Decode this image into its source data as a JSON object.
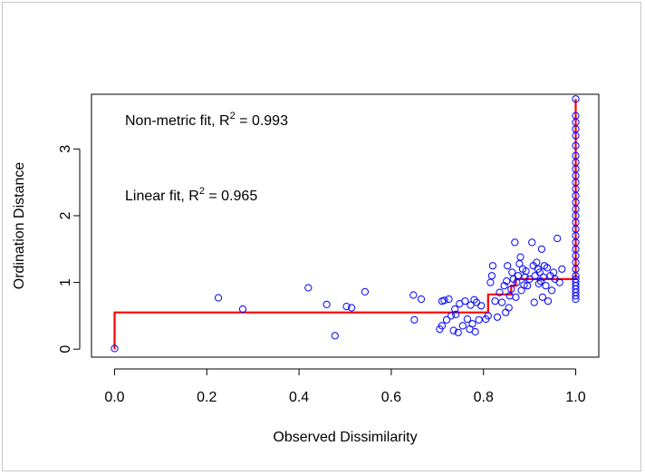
{
  "chart_data": {
    "type": "scatter",
    "title": "",
    "xlabel": "Observed Dissimilarity",
    "ylabel": "Ordination Distance",
    "xlim": [
      -0.05,
      1.05
    ],
    "ylim": [
      -0.12,
      3.82
    ],
    "x_ticks": [
      0.0,
      0.2,
      0.4,
      0.6,
      0.8,
      1.0
    ],
    "x_tick_labels": [
      "0.0",
      "0.2",
      "0.4",
      "0.6",
      "0.8",
      "1.0"
    ],
    "y_ticks": [
      0,
      1,
      2,
      3
    ],
    "y_tick_labels": [
      "0",
      "1",
      "2",
      "3"
    ],
    "grid": false,
    "legend": "none",
    "annotations": [
      {
        "prefix": "Non-metric fit, R",
        "sup": "2",
        "suffix": " = 0.993"
      },
      {
        "prefix": "Linear fit, R",
        "sup": "2",
        "suffix": " = 0.965"
      }
    ],
    "point_color": "#0000ff",
    "line_color": "#ff0000",
    "points": [
      [
        0.0,
        0.01
      ],
      [
        0.225,
        0.77
      ],
      [
        0.278,
        0.6
      ],
      [
        0.42,
        0.92
      ],
      [
        0.46,
        0.67
      ],
      [
        0.478,
        0.2
      ],
      [
        0.503,
        0.64
      ],
      [
        0.514,
        0.62
      ],
      [
        0.543,
        0.86
      ],
      [
        0.648,
        0.81
      ],
      [
        0.65,
        0.44
      ],
      [
        0.665,
        0.75
      ],
      [
        0.705,
        0.3
      ],
      [
        0.71,
        0.35
      ],
      [
        0.71,
        0.72
      ],
      [
        0.715,
        0.73
      ],
      [
        0.72,
        0.44
      ],
      [
        0.725,
        0.75
      ],
      [
        0.73,
        0.5
      ],
      [
        0.735,
        0.28
      ],
      [
        0.738,
        0.6
      ],
      [
        0.74,
        0.52
      ],
      [
        0.745,
        0.25
      ],
      [
        0.748,
        0.68
      ],
      [
        0.755,
        0.35
      ],
      [
        0.76,
        0.72
      ],
      [
        0.765,
        0.45
      ],
      [
        0.77,
        0.3
      ],
      [
        0.772,
        0.66
      ],
      [
        0.776,
        0.38
      ],
      [
        0.78,
        0.74
      ],
      [
        0.782,
        0.26
      ],
      [
        0.785,
        0.7
      ],
      [
        0.79,
        0.44
      ],
      [
        0.795,
        0.65
      ],
      [
        0.805,
        0.45
      ],
      [
        0.81,
        0.5
      ],
      [
        0.815,
        1.0
      ],
      [
        0.818,
        1.1
      ],
      [
        0.82,
        1.25
      ],
      [
        0.825,
        0.72
      ],
      [
        0.83,
        0.48
      ],
      [
        0.835,
        0.85
      ],
      [
        0.84,
        0.7
      ],
      [
        0.845,
        0.95
      ],
      [
        0.848,
        0.55
      ],
      [
        0.85,
        1.02
      ],
      [
        0.852,
        1.25
      ],
      [
        0.855,
        0.62
      ],
      [
        0.857,
        0.8
      ],
      [
        0.86,
        0.9
      ],
      [
        0.862,
        1.15
      ],
      [
        0.865,
        1.05
      ],
      [
        0.868,
        1.6
      ],
      [
        0.87,
        0.78
      ],
      [
        0.872,
        1.0
      ],
      [
        0.875,
        1.1
      ],
      [
        0.878,
        1.28
      ],
      [
        0.88,
        1.38
      ],
      [
        0.882,
        0.88
      ],
      [
        0.885,
        1.2
      ],
      [
        0.888,
        0.96
      ],
      [
        0.89,
        1.08
      ],
      [
        0.892,
        1.17
      ],
      [
        0.895,
        0.95
      ],
      [
        0.9,
        1.05
      ],
      [
        0.905,
        1.6
      ],
      [
        0.908,
        1.25
      ],
      [
        0.91,
        0.7
      ],
      [
        0.912,
        1.1
      ],
      [
        0.915,
        1.3
      ],
      [
        0.918,
        1.2
      ],
      [
        0.92,
        0.98
      ],
      [
        0.922,
        1.15
      ],
      [
        0.924,
        1.02
      ],
      [
        0.926,
        1.5
      ],
      [
        0.928,
        0.78
      ],
      [
        0.93,
        1.08
      ],
      [
        0.932,
        1.25
      ],
      [
        0.935,
        0.95
      ],
      [
        0.938,
        1.22
      ],
      [
        0.94,
        0.72
      ],
      [
        0.945,
        1.1
      ],
      [
        0.948,
        0.88
      ],
      [
        0.952,
        1.15
      ],
      [
        0.955,
        1.05
      ],
      [
        0.96,
        1.66
      ],
      [
        0.965,
        1.0
      ],
      [
        0.97,
        1.2
      ],
      [
        1.0,
        0.75
      ],
      [
        1.0,
        0.8
      ],
      [
        1.0,
        0.85
      ],
      [
        1.0,
        0.9
      ],
      [
        1.0,
        0.95
      ],
      [
        1.0,
        1.0
      ],
      [
        1.0,
        1.05
      ],
      [
        1.0,
        1.1
      ],
      [
        1.0,
        1.2
      ],
      [
        1.0,
        1.3
      ],
      [
        1.0,
        1.4
      ],
      [
        1.0,
        1.5
      ],
      [
        1.0,
        1.6
      ],
      [
        1.0,
        1.7
      ],
      [
        1.0,
        1.8
      ],
      [
        1.0,
        1.9
      ],
      [
        1.0,
        2.0
      ],
      [
        1.0,
        2.1
      ],
      [
        1.0,
        2.2
      ],
      [
        1.0,
        2.3
      ],
      [
        1.0,
        2.4
      ],
      [
        1.0,
        2.5
      ],
      [
        1.0,
        2.6
      ],
      [
        1.0,
        2.7
      ],
      [
        1.0,
        2.8
      ],
      [
        1.0,
        2.9
      ],
      [
        1.0,
        3.05
      ],
      [
        1.0,
        3.2
      ],
      [
        1.0,
        3.3
      ],
      [
        1.0,
        3.4
      ],
      [
        1.0,
        3.5
      ],
      [
        1.0,
        3.75
      ]
    ],
    "step_line": [
      [
        0.0,
        0.0
      ],
      [
        0.0,
        0.55
      ],
      [
        0.81,
        0.55
      ],
      [
        0.81,
        0.82
      ],
      [
        0.86,
        0.82
      ],
      [
        0.86,
        0.95
      ],
      [
        0.87,
        0.95
      ],
      [
        0.87,
        1.05
      ],
      [
        1.0,
        1.05
      ],
      [
        1.0,
        3.75
      ]
    ]
  }
}
